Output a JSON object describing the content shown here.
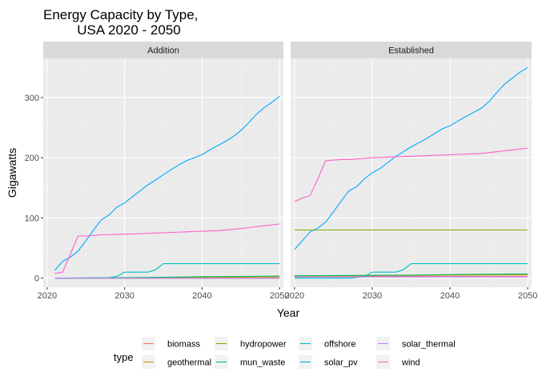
{
  "chart_data": {
    "type": "line",
    "title_lines": [
      "Energy Capacity by Type,",
      "USA 2020 - 2050"
    ],
    "xlabel": "Year",
    "ylabel": "Gigawatts",
    "xlim": [
      2019.5,
      2050.5
    ],
    "ylim": [
      -15,
      365
    ],
    "x_ticks": [
      2020,
      2030,
      2040,
      2050
    ],
    "y_ticks": [
      0,
      100,
      200,
      300
    ],
    "grid": true,
    "legend": {
      "title": "type",
      "placement": "bottom",
      "entries": [
        "biomass",
        "geothermal",
        "hydropower",
        "mun_waste",
        "offshore",
        "solar_pv",
        "solar_thermal",
        "wind"
      ]
    },
    "colors": {
      "biomass": "#F8766D",
      "geothermal": "#CD9600",
      "hydropower": "#7CAE00",
      "mun_waste": "#00BE67",
      "offshore": "#00BFC4",
      "solar_pv": "#00A9FF",
      "solar_thermal": "#C77CFF",
      "wind": "#FF61CC"
    },
    "panels": [
      {
        "label": "Addition",
        "series": [
          {
            "name": "biomass",
            "x": [
              2021,
              2050
            ],
            "y": [
              0,
              0
            ]
          },
          {
            "name": "geothermal",
            "x": [
              2021,
              2027,
              2035,
              2040,
              2050
            ],
            "y": [
              0,
              0.3,
              0.8,
              1.5,
              2
            ]
          },
          {
            "name": "hydropower",
            "x": [
              2021,
              2050
            ],
            "y": [
              0,
              0
            ]
          },
          {
            "name": "mun_waste",
            "x": [
              2021,
              2025,
              2030,
              2035,
              2040,
              2045,
              2050
            ],
            "y": [
              0,
              0.5,
              1.0,
              1.5,
              2.5,
              3,
              3.5
            ]
          },
          {
            "name": "offshore",
            "x": [
              2021,
              2027,
              2028,
              2029,
              2030,
              2031,
              2032,
              2033,
              2034,
              2035,
              2040,
              2045,
              2050
            ],
            "y": [
              0,
              0,
              1,
              3,
              10,
              10,
              10,
              10,
              14,
              24,
              24,
              24,
              24
            ]
          },
          {
            "name": "solar_pv",
            "x": [
              2021,
              2022,
              2023,
              2024,
              2025,
              2026,
              2027,
              2028,
              2029,
              2030,
              2031,
              2032,
              2033,
              2034,
              2035,
              2036,
              2037,
              2038,
              2039,
              2040,
              2041,
              2042,
              2043,
              2044,
              2045,
              2046,
              2047,
              2048,
              2049,
              2050
            ],
            "y": [
              13,
              28,
              35,
              45,
              62,
              80,
              97,
              105,
              118,
              125,
              135,
              145,
              155,
              163,
              172,
              180,
              188,
              195,
              200,
              205,
              213,
              220,
              227,
              235,
              245,
              258,
              272,
              283,
              292,
              302
            ]
          },
          {
            "name": "solar_thermal",
            "x": [
              2021,
              2050
            ],
            "y": [
              0,
              0
            ]
          },
          {
            "name": "wind",
            "x": [
              2021,
              2022,
              2023,
              2024,
              2025,
              2026,
              2027,
              2028,
              2029,
              2030,
              2032,
              2034,
              2036,
              2038,
              2040,
              2042,
              2044,
              2046,
              2048,
              2050
            ],
            "y": [
              8,
              10,
              40,
              70,
              70,
              71,
              72,
              72,
              73,
              73,
              74,
              75,
              76,
              77,
              78,
              79,
              81,
              84,
              87,
              90
            ]
          }
        ]
      },
      {
        "label": "Established",
        "series": [
          {
            "name": "biomass",
            "x": [
              2020,
              2050
            ],
            "y": [
              3,
              3
            ]
          },
          {
            "name": "geothermal",
            "x": [
              2020,
              2027,
              2035,
              2040,
              2050
            ],
            "y": [
              3.5,
              4,
              4.5,
              5,
              5.5
            ]
          },
          {
            "name": "hydropower",
            "x": [
              2020,
              2050
            ],
            "y": [
              80,
              80
            ]
          },
          {
            "name": "mun_waste",
            "x": [
              2020,
              2027,
              2035,
              2040,
              2050
            ],
            "y": [
              4,
              4.5,
              5,
              6,
              7
            ]
          },
          {
            "name": "offshore",
            "x": [
              2020,
              2027,
              2028,
              2029,
              2030,
              2031,
              2032,
              2033,
              2034,
              2035,
              2040,
              2045,
              2050
            ],
            "y": [
              0,
              0,
              1,
              3,
              10,
              10,
              10,
              10,
              14,
              24,
              24,
              24,
              24
            ]
          },
          {
            "name": "solar_pv",
            "x": [
              2020,
              2021,
              2022,
              2023,
              2024,
              2025,
              2026,
              2027,
              2028,
              2029,
              2030,
              2031,
              2032,
              2033,
              2034,
              2035,
              2036,
              2037,
              2038,
              2039,
              2040,
              2041,
              2042,
              2043,
              2044,
              2045,
              2046,
              2047,
              2048,
              2049,
              2050
            ],
            "y": [
              48,
              62,
              77,
              83,
              93,
              110,
              128,
              145,
              152,
              165,
              175,
              182,
              192,
              202,
              210,
              218,
              225,
              232,
              240,
              248,
              253,
              261,
              268,
              275,
              282,
              293,
              308,
              322,
              332,
              342,
              350
            ]
          },
          {
            "name": "solar_thermal",
            "x": [
              2020,
              2050
            ],
            "y": [
              2,
              2
            ]
          },
          {
            "name": "wind",
            "x": [
              2020,
              2021,
              2022,
              2023,
              2024,
              2025,
              2026,
              2027,
              2028,
              2030,
              2032,
              2034,
              2036,
              2038,
              2040,
              2042,
              2044,
              2046,
              2048,
              2050
            ],
            "y": [
              127,
              133,
              137,
              165,
              195,
              196,
              197,
              197,
              198,
              200,
              201,
              202,
              203,
              204,
              205,
              206,
              207,
              210,
              213,
              216
            ]
          }
        ]
      }
    ]
  }
}
